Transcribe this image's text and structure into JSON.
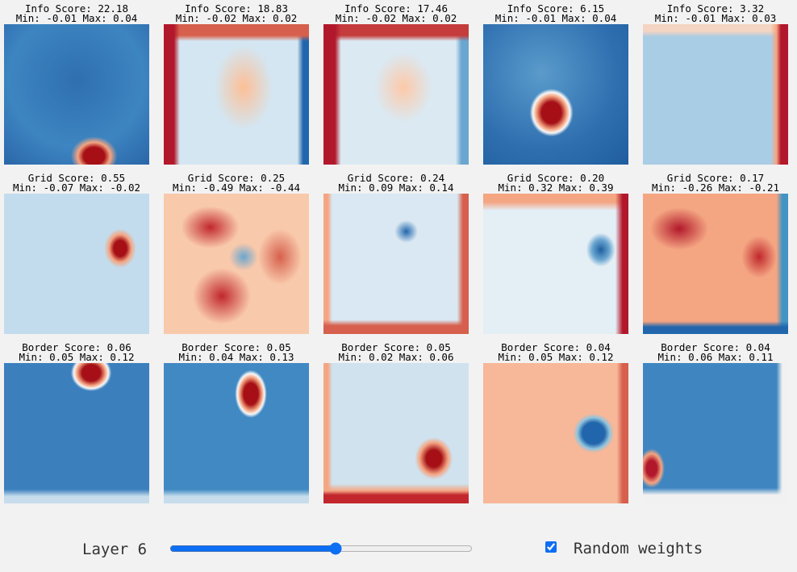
{
  "panels": [
    {
      "title": "Info Score: 22.18",
      "range": "Min: -0.01 Max: 0.04"
    },
    {
      "title": "Info Score: 18.83",
      "range": "Min: -0.02 Max: 0.02"
    },
    {
      "title": "Info Score: 17.46",
      "range": "Min: -0.02 Max: 0.02"
    },
    {
      "title": "Info Score: 6.15",
      "range": "Min: -0.01 Max: 0.04"
    },
    {
      "title": "Info Score: 3.32",
      "range": "Min: -0.01 Max: 0.03"
    },
    {
      "title": "Grid Score: 0.55",
      "range": "Min: -0.07 Max: -0.02"
    },
    {
      "title": "Grid Score: 0.25",
      "range": "Min: -0.49 Max: -0.44"
    },
    {
      "title": "Grid Score: 0.24",
      "range": "Min: 0.09 Max: 0.14"
    },
    {
      "title": "Grid Score: 0.20",
      "range": "Min: 0.32 Max: 0.39"
    },
    {
      "title": "Grid Score: 0.17",
      "range": "Min: -0.26 Max: -0.21"
    },
    {
      "title": "Border Score: 0.06",
      "range": "Min: 0.05 Max: 0.12"
    },
    {
      "title": "Border Score: 0.05",
      "range": "Min: 0.04 Max: 0.13"
    },
    {
      "title": "Border Score: 0.05",
      "range": "Min: 0.02 Max: 0.06"
    },
    {
      "title": "Border Score: 0.04",
      "range": "Min: 0.05 Max: 0.12"
    },
    {
      "title": "Border Score: 0.04",
      "range": "Min: 0.06 Max: 0.11"
    }
  ],
  "controls": {
    "layer_label": "Layer 6",
    "checkbox_label": "Random weights"
  }
}
